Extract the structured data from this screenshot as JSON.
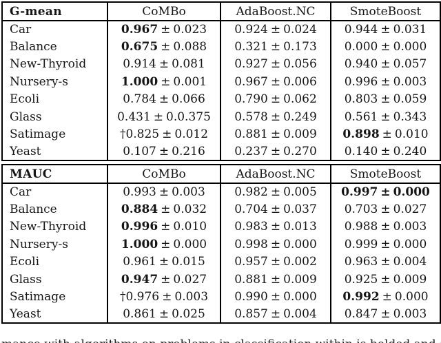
{
  "colors": {
    "background": "#ffffff",
    "text": "#151515",
    "border": "#000000"
  },
  "symbols": {
    "plus_minus": "±"
  },
  "caption_fragment": "mance with algorithms on problems in classification within is bolded and de",
  "tables": [
    {
      "metric": "G-mean",
      "columns": [
        "CoMBo",
        "AdaBoost.NC",
        "SmoteBoost"
      ],
      "rows": [
        {
          "dataset": "Car",
          "cells": [
            {
              "mean": "0.967",
              "std": "0.023",
              "bold": true
            },
            {
              "mean": "0.924",
              "std": "0.024"
            },
            {
              "mean": "0.944",
              "std": "0.031"
            }
          ]
        },
        {
          "dataset": "Balance",
          "cells": [
            {
              "mean": "0.675",
              "std": "0.088",
              "bold": true
            },
            {
              "mean": "0.321",
              "std": "0.173"
            },
            {
              "mean": "0.000",
              "std": "0.000"
            }
          ]
        },
        {
          "dataset": "New-Thyroid",
          "cells": [
            {
              "mean": "0.914",
              "std": "0.081"
            },
            {
              "mean": "0.927",
              "std": "0.056"
            },
            {
              "mean": "0.940",
              "std": "0.057"
            }
          ]
        },
        {
          "dataset": "Nursery-s",
          "cells": [
            {
              "mean": "1.000",
              "std": "0.001",
              "bold": true
            },
            {
              "mean": "0.967",
              "std": "0.006"
            },
            {
              "mean": "0.996",
              "std": "0.003"
            }
          ]
        },
        {
          "dataset": "Ecoli",
          "cells": [
            {
              "mean": "0.784",
              "std": "0.066"
            },
            {
              "mean": "0.790",
              "std": "0.062"
            },
            {
              "mean": "0.803",
              "std": "0.059"
            }
          ]
        },
        {
          "dataset": "Glass",
          "cells": [
            {
              "mean": "0.431",
              "std": "0.0.375"
            },
            {
              "mean": "0.578",
              "std": "0.249"
            },
            {
              "mean": "0.561",
              "std": "0.343"
            }
          ]
        },
        {
          "dataset": "Satimage",
          "cells": [
            {
              "mean": "†0.825",
              "std": "0.012"
            },
            {
              "mean": "0.881",
              "std": "0.009"
            },
            {
              "mean": "0.898",
              "std": "0.010",
              "bold": true
            }
          ]
        },
        {
          "dataset": "Yeast",
          "cells": [
            {
              "mean": "0.107",
              "std": "0.216"
            },
            {
              "mean": "0.237",
              "std": "0.270"
            },
            {
              "mean": "0.140",
              "std": "0.240"
            }
          ]
        }
      ]
    },
    {
      "metric": "MAUC",
      "columns": [
        "CoMBo",
        "AdaBoost.NC",
        "SmoteBoost"
      ],
      "rows": [
        {
          "dataset": "Car",
          "cells": [
            {
              "mean": "0.993",
              "std": "0.003"
            },
            {
              "mean": "0.982",
              "std": "0.005"
            },
            {
              "mean": "0.997",
              "std": "0.000",
              "bold": true,
              "bold_all": true
            }
          ]
        },
        {
          "dataset": "Balance",
          "cells": [
            {
              "mean": "0.884",
              "std": "0.032",
              "bold": true
            },
            {
              "mean": "0.704",
              "std": "0.037"
            },
            {
              "mean": "0.703",
              "std": "0.027"
            }
          ]
        },
        {
          "dataset": "New-Thyroid",
          "cells": [
            {
              "mean": "0.996",
              "std": "0.010",
              "bold": true
            },
            {
              "mean": "0.983",
              "std": "0.013"
            },
            {
              "mean": "0.988",
              "std": "0.003"
            }
          ]
        },
        {
          "dataset": "Nursery-s",
          "cells": [
            {
              "mean": "1.000",
              "std": "0.000",
              "bold": true
            },
            {
              "mean": "0.998",
              "std": "0.000"
            },
            {
              "mean": "0.999",
              "std": "0.000"
            }
          ]
        },
        {
          "dataset": "Ecoli",
          "cells": [
            {
              "mean": "0.961",
              "std": "0.015"
            },
            {
              "mean": "0.957",
              "std": "0.002"
            },
            {
              "mean": "0.963",
              "std": "0.004"
            }
          ]
        },
        {
          "dataset": "Glass",
          "cells": [
            {
              "mean": "0.947",
              "std": "0.027",
              "bold": true
            },
            {
              "mean": "0.881",
              "std": "0.009"
            },
            {
              "mean": "0.925",
              "std": "0.009"
            }
          ]
        },
        {
          "dataset": "Satimage",
          "cells": [
            {
              "mean": "†0.976",
              "std": "0.003"
            },
            {
              "mean": "0.990",
              "std": "0.000"
            },
            {
              "mean": "0.992",
              "std": "0.000",
              "bold": true
            }
          ]
        },
        {
          "dataset": "Yeast",
          "cells": [
            {
              "mean": "0.861",
              "std": "0.025"
            },
            {
              "mean": "0.857",
              "std": "0.004"
            },
            {
              "mean": "0.847",
              "std": "0.003"
            }
          ]
        }
      ]
    }
  ]
}
